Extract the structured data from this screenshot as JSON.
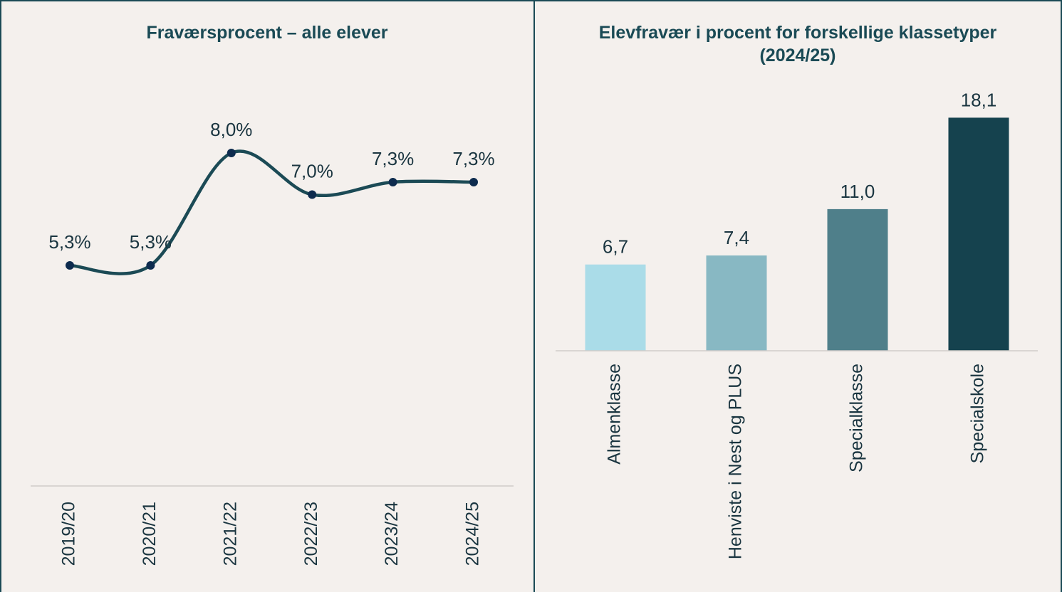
{
  "chart_data": [
    {
      "type": "line",
      "title": "Fraværsprocent – alle elever",
      "categories": [
        "2019/20",
        "2020/21",
        "2021/22",
        "2022/23",
        "2023/24",
        "2024/25"
      ],
      "values": [
        5.3,
        5.3,
        8.0,
        7.0,
        7.3,
        7.3
      ],
      "value_labels": [
        "5,3%",
        "5,3%",
        "8,0%",
        "7,0%",
        "7,3%",
        "7,3%"
      ],
      "color": "#1b4a55",
      "marker_color": "#0d2b4e",
      "ylim": [
        0,
        10
      ]
    },
    {
      "type": "bar",
      "title": "Elevfravær i procent for forskellige klassetyper (2024/25)",
      "categories": [
        "Almenklasse",
        "Henviste i Nest og PLUS",
        "Specialklasse",
        "Specialskole"
      ],
      "values": [
        6.7,
        7.4,
        11.0,
        18.1
      ],
      "value_labels": [
        "6,7",
        "7,4",
        "11,0",
        "18,1"
      ],
      "colors": [
        "#aadce8",
        "#88b8c3",
        "#4f7f8a",
        "#15424e"
      ],
      "ylim": [
        0,
        20
      ]
    }
  ]
}
